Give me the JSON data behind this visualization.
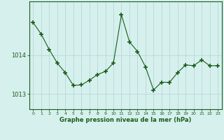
{
  "hours": [
    0,
    1,
    2,
    3,
    4,
    5,
    6,
    7,
    8,
    9,
    10,
    11,
    12,
    13,
    14,
    15,
    16,
    17,
    18,
    19,
    20,
    21,
    22,
    23
  ],
  "pressure": [
    1014.85,
    1014.55,
    1014.15,
    1013.8,
    1013.55,
    1013.22,
    1013.23,
    1013.35,
    1013.5,
    1013.58,
    1013.8,
    1015.05,
    1014.35,
    1014.1,
    1013.7,
    1013.1,
    1013.3,
    1013.3,
    1013.55,
    1013.75,
    1013.73,
    1013.88,
    1013.73,
    1013.73
  ],
  "line_color": "#1a5c1a",
  "marker": "+",
  "marker_size": 4,
  "bg_color": "#d6f0ee",
  "grid_color": "#b8d8d8",
  "xlabel": "Graphe pression niveau de la mer (hPa)",
  "xlabel_color": "#1a5c1a",
  "tick_color": "#1a5c1a",
  "yticks": [
    1013,
    1014
  ],
  "ylim": [
    1012.6,
    1015.4
  ],
  "xlim": [
    -0.5,
    23.5
  ],
  "xtick_labels": [
    "0",
    "1",
    "2",
    "3",
    "4",
    "5",
    "6",
    "7",
    "8",
    "9",
    "10",
    "11",
    "12",
    "13",
    "14",
    "15",
    "16",
    "17",
    "18",
    "19",
    "20",
    "21",
    "22",
    "23"
  ],
  "figsize": [
    3.2,
    2.0
  ],
  "dpi": 100
}
